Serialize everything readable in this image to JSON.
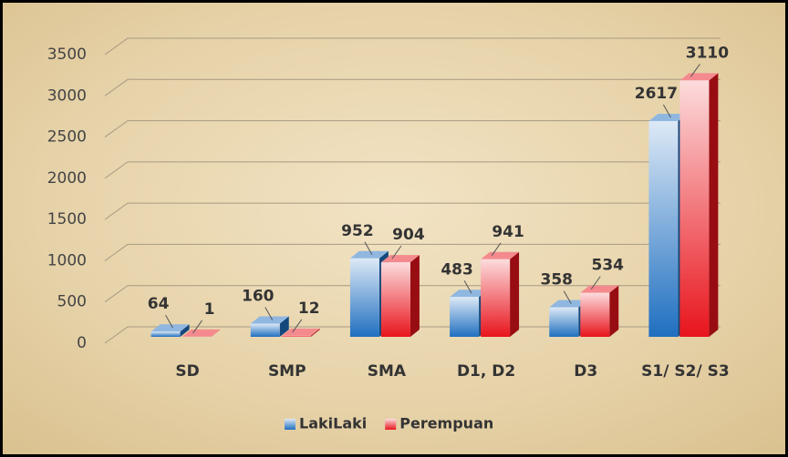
{
  "chart_data": {
    "type": "bar3d",
    "categories": [
      "SD",
      "SMP",
      "SMA",
      "D1, D2",
      "D3",
      "S1/ S2/ S3"
    ],
    "series": [
      {
        "name": "LakiLaki",
        "color": "#1f6fc0",
        "values": [
          64,
          160,
          952,
          483,
          358,
          2617
        ]
      },
      {
        "name": "Perempuan",
        "color": "#e8141c",
        "values": [
          1,
          12,
          904,
          941,
          534,
          3110
        ]
      }
    ],
    "ylim": [
      0,
      3500
    ],
    "yticks": [
      0,
      500,
      1000,
      1500,
      2000,
      2500,
      3000,
      3500
    ],
    "grid": true,
    "legend": "bottom"
  }
}
